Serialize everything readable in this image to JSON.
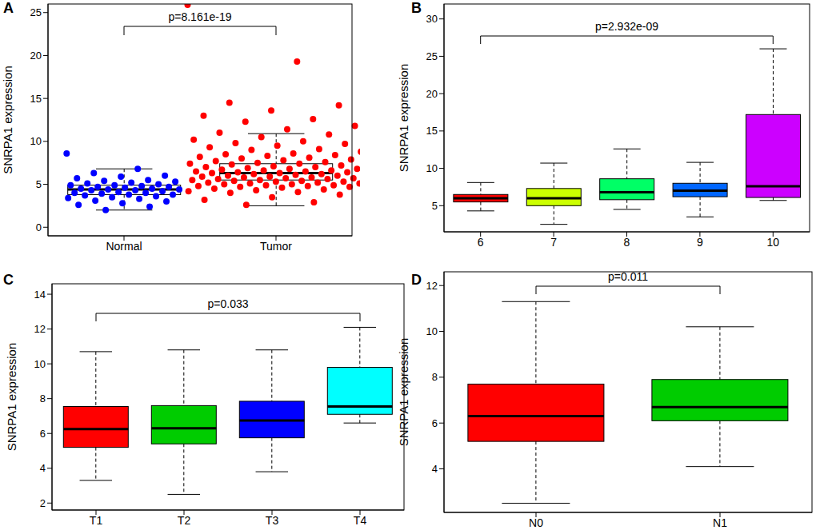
{
  "chart_data": [
    {
      "type": "box",
      "title": "A",
      "y_label": "SNRPA1 expression",
      "annotation": "p=8.161e-19",
      "categories": [
        "Normal",
        "Tumor"
      ],
      "ylim": [
        -1,
        26
      ],
      "yticks": [
        0,
        5,
        10,
        15,
        20,
        25
      ],
      "grid": false,
      "box_stats": [
        {
          "low": 2.0,
          "q1": 3.8,
          "median": 4.4,
          "q3": 4.9,
          "high": 6.8
        },
        {
          "low": 2.5,
          "q1": 5.5,
          "median": 6.3,
          "q3": 7.4,
          "high": 10.9
        }
      ],
      "points": [
        {
          "color": "#0000ff",
          "values": [
            8.6,
            6.8,
            6.3,
            6.0,
            5.9,
            5.7,
            5.5,
            5.4,
            5.3,
            5.2,
            5.1,
            5.0,
            4.9,
            4.9,
            4.8,
            4.7,
            4.7,
            4.6,
            4.5,
            4.5,
            4.4,
            4.4,
            4.3,
            4.3,
            4.2,
            4.1,
            4.0,
            4.0,
            3.9,
            3.8,
            3.8,
            3.7,
            3.6,
            3.5,
            3.4,
            3.3,
            3.1,
            3.0,
            2.8,
            2.6,
            2.4,
            2.0
          ]
        },
        {
          "color": "#ff0000",
          "values": [
            25.9,
            19.3,
            14.5,
            14.2,
            13.6,
            13.0,
            12.6,
            12.3,
            11.8,
            11.4,
            11.0,
            10.8,
            10.5,
            10.2,
            10.0,
            9.8,
            9.7,
            9.5,
            9.3,
            9.1,
            9.0,
            8.8,
            8.6,
            8.5,
            8.4,
            8.3,
            8.2,
            8.1,
            8.0,
            7.9,
            7.8,
            7.7,
            7.6,
            7.5,
            7.4,
            7.4,
            7.3,
            7.2,
            7.1,
            7.0,
            7.0,
            6.9,
            6.8,
            6.8,
            6.7,
            6.6,
            6.6,
            6.5,
            6.5,
            6.4,
            6.4,
            6.3,
            6.3,
            6.2,
            6.2,
            6.1,
            6.1,
            6.0,
            6.0,
            5.9,
            5.9,
            5.8,
            5.8,
            5.7,
            5.7,
            5.6,
            5.6,
            5.5,
            5.5,
            5.4,
            5.4,
            5.3,
            5.3,
            5.2,
            5.2,
            5.1,
            5.1,
            5.0,
            5.0,
            4.9,
            4.9,
            4.8,
            4.8,
            4.7,
            4.7,
            4.6,
            4.5,
            4.4,
            4.3,
            4.2,
            4.1,
            4.0,
            3.8,
            3.5,
            3.2,
            2.9,
            2.6
          ]
        }
      ]
    },
    {
      "type": "box",
      "title": "B",
      "y_label": "SNRPA1 expression",
      "annotation": "p=2.932e-09",
      "categories": [
        "6",
        "7",
        "8",
        "9",
        "10"
      ],
      "ylim": [
        1.5,
        32
      ],
      "yticks": [
        5,
        10,
        15,
        20,
        25,
        30
      ],
      "grid": false,
      "colors": [
        "#ff0000",
        "#ccff00",
        "#00ff66",
        "#0066ff",
        "#cc00ff"
      ],
      "box_stats": [
        {
          "low": 4.3,
          "q1": 5.5,
          "median": 6.0,
          "q3": 6.5,
          "high": 8.1
        },
        {
          "low": 2.5,
          "q1": 5.0,
          "median": 6.0,
          "q3": 7.3,
          "high": 10.7
        },
        {
          "low": 4.5,
          "q1": 5.8,
          "median": 6.8,
          "q3": 8.6,
          "high": 12.6
        },
        {
          "low": 3.5,
          "q1": 6.2,
          "median": 7.0,
          "q3": 8.0,
          "high": 10.8
        },
        {
          "low": 5.7,
          "q1": 6.1,
          "median": 7.6,
          "q3": 17.2,
          "high": 26.0
        }
      ]
    },
    {
      "type": "box",
      "title": "C",
      "y_label": "SNRPA1 expression",
      "annotation": "p=0.033",
      "categories": [
        "T1",
        "T2",
        "T3",
        "T4"
      ],
      "ylim": [
        1.6,
        14.6
      ],
      "yticks": [
        2,
        4,
        6,
        8,
        10,
        12,
        14
      ],
      "grid": false,
      "colors": [
        "#ff0000",
        "#00cc00",
        "#0000ff",
        "#00ffff"
      ],
      "box_stats": [
        {
          "low": 3.3,
          "q1": 5.2,
          "median": 6.25,
          "q3": 7.55,
          "high": 10.7
        },
        {
          "low": 2.5,
          "q1": 5.4,
          "median": 6.3,
          "q3": 7.6,
          "high": 10.8
        },
        {
          "low": 3.8,
          "q1": 5.75,
          "median": 6.75,
          "q3": 7.85,
          "high": 10.8
        },
        {
          "low": 6.6,
          "q1": 7.1,
          "median": 7.55,
          "q3": 9.8,
          "high": 12.1
        }
      ]
    },
    {
      "type": "box",
      "title": "D",
      "y_label": "SNRPA1 expression",
      "annotation": "p=0.011",
      "categories": [
        "N0",
        "N1"
      ],
      "ylim": [
        2.1,
        12.6
      ],
      "yticks": [
        4,
        6,
        8,
        10,
        12
      ],
      "grid": false,
      "colors": [
        "#ff0000",
        "#00cc00"
      ],
      "box_stats": [
        {
          "low": 2.5,
          "q1": 5.2,
          "median": 6.3,
          "q3": 7.7,
          "high": 11.3
        },
        {
          "low": 4.1,
          "q1": 6.1,
          "median": 6.7,
          "q3": 7.9,
          "high": 10.2
        }
      ]
    }
  ]
}
